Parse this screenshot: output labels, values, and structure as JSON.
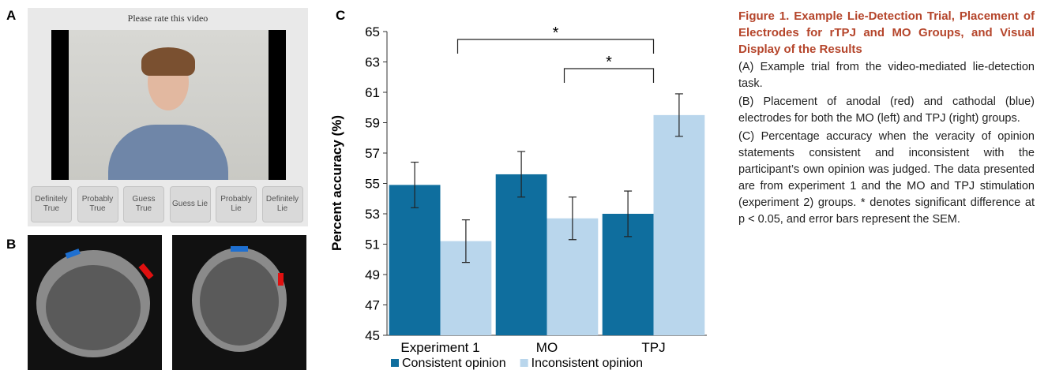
{
  "panels": {
    "a": "A",
    "b": "B",
    "c": "C"
  },
  "video": {
    "prompt": "Please rate this video",
    "buttons": [
      "Definitely True",
      "Probably True",
      "Guess True",
      "Guess Lie",
      "Probably Lie",
      "Definitely Lie"
    ]
  },
  "chart_data": {
    "type": "bar",
    "y_label": "Percent accuracy (%)",
    "categories": [
      "Experiment 1",
      "MO",
      "TPJ"
    ],
    "series": [
      {
        "name": "Consistent opinion",
        "color": "#0f6e9e",
        "values": [
          54.9,
          55.6,
          53.0
        ],
        "errors": [
          1.5,
          1.5,
          1.5
        ]
      },
      {
        "name": "Inconsistent opinion",
        "color": "#b9d6ec",
        "values": [
          51.2,
          52.7,
          59.5
        ],
        "errors": [
          1.4,
          1.4,
          1.4
        ]
      }
    ],
    "ylim": [
      45,
      65
    ],
    "yticks": [
      45,
      47,
      49,
      51,
      53,
      55,
      57,
      59,
      61,
      63,
      65
    ],
    "annotations": [
      {
        "text": "*",
        "between": [
          0,
          2
        ]
      },
      {
        "text": "*",
        "between": [
          1,
          2
        ]
      }
    ]
  },
  "caption": {
    "title": "Figure 1. Example Lie-Detection Trial, Placement of Electrodes for rTPJ and MO Groups, and Visual Display of the Results",
    "paragraphs": [
      "(A) Example trial from the video-mediated lie-detection task.",
      "(B) Placement of anodal (red) and cathodal (blue) electrodes for both the MO (left) and TPJ (right) groups.",
      "(C) Percentage accuracy when the veracity of opinion statements consistent and inconsistent with the participant’s own opinion was judged. The data presented are from experiment 1 and the MO and TPJ stimulation (experiment 2) groups. * denotes significant difference at p < 0.05, and error bars represent the SEM."
    ]
  }
}
